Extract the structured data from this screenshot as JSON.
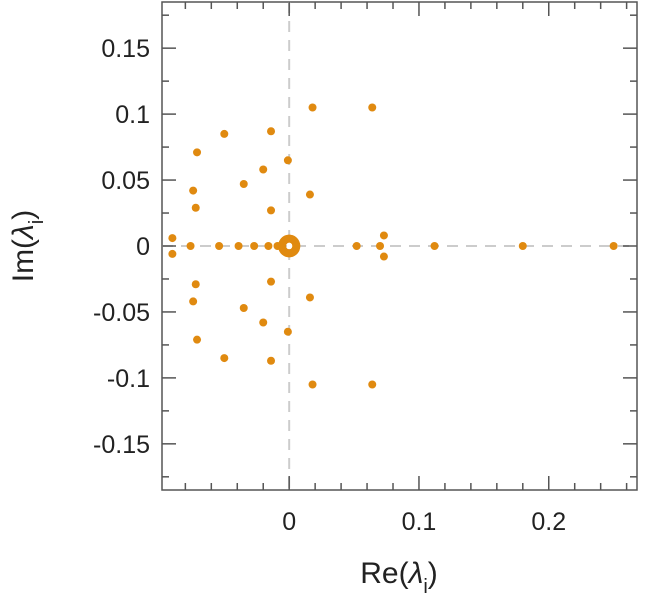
{
  "chart_data": {
    "type": "scatter",
    "xlabel": {
      "prefix": "Re(",
      "symbol": "λ",
      "subscript": "i",
      "suffix": ")"
    },
    "ylabel": {
      "prefix": "Im(",
      "symbol": "λ",
      "subscript": "i",
      "suffix": ")"
    },
    "xlim": [
      -0.098,
      0.268
    ],
    "ylim": [
      -0.185,
      0.185
    ],
    "x_ticks": [
      {
        "value": 0,
        "label": "0"
      },
      {
        "value": 0.1,
        "label": "0.1"
      },
      {
        "value": 0.2,
        "label": "0.2"
      }
    ],
    "x_minor_step": 0.02,
    "y_ticks": [
      {
        "value": 0.15,
        "label": "0.15"
      },
      {
        "value": 0.1,
        "label": "0.1"
      },
      {
        "value": 0.05,
        "label": "0.05"
      },
      {
        "value": 0,
        "label": "0"
      },
      {
        "value": -0.05,
        "label": "-0.05"
      },
      {
        "value": -0.1,
        "label": "-0.1"
      },
      {
        "value": -0.15,
        "label": "-0.15"
      }
    ],
    "y_minor_step": 0.025,
    "reference_lines": {
      "x": 0,
      "y": 0
    },
    "grid": false,
    "marker_color": "#e08a10",
    "points": [
      {
        "x": 0.018,
        "y": 0.105
      },
      {
        "x": 0.064,
        "y": 0.105
      },
      {
        "x": -0.05,
        "y": 0.085
      },
      {
        "x": -0.014,
        "y": 0.087
      },
      {
        "x": -0.071,
        "y": 0.071
      },
      {
        "x": -0.001,
        "y": 0.065
      },
      {
        "x": -0.02,
        "y": 0.058
      },
      {
        "x": -0.035,
        "y": 0.047
      },
      {
        "x": -0.074,
        "y": 0.042
      },
      {
        "x": 0.016,
        "y": 0.039
      },
      {
        "x": -0.072,
        "y": 0.029
      },
      {
        "x": -0.014,
        "y": 0.027
      },
      {
        "x": 0.073,
        "y": 0.008
      },
      {
        "x": -0.09,
        "y": 0.006
      },
      {
        "x": -0.076,
        "y": 0
      },
      {
        "x": -0.054,
        "y": 0
      },
      {
        "x": -0.039,
        "y": 0
      },
      {
        "x": -0.027,
        "y": 0
      },
      {
        "x": -0.016,
        "y": 0
      },
      {
        "x": -0.009,
        "y": 0
      },
      {
        "x": 0.052,
        "y": 0
      },
      {
        "x": 0.07,
        "y": 0
      },
      {
        "x": 0.112,
        "y": 0
      },
      {
        "x": 0.18,
        "y": 0
      },
      {
        "x": 0.25,
        "y": 0
      },
      {
        "x": -0.09,
        "y": -0.006
      },
      {
        "x": 0.073,
        "y": -0.008
      },
      {
        "x": -0.014,
        "y": -0.027
      },
      {
        "x": -0.072,
        "y": -0.029
      },
      {
        "x": 0.016,
        "y": -0.039
      },
      {
        "x": -0.074,
        "y": -0.042
      },
      {
        "x": -0.035,
        "y": -0.047
      },
      {
        "x": -0.02,
        "y": -0.058
      },
      {
        "x": -0.001,
        "y": -0.065
      },
      {
        "x": -0.071,
        "y": -0.071
      },
      {
        "x": -0.05,
        "y": -0.085
      },
      {
        "x": -0.014,
        "y": -0.087
      },
      {
        "x": 0.018,
        "y": -0.105
      },
      {
        "x": 0.064,
        "y": -0.105
      }
    ],
    "cluster": {
      "center_x": 0.0,
      "center_y": 0.0,
      "radius": 0.0055,
      "count": 40
    }
  }
}
